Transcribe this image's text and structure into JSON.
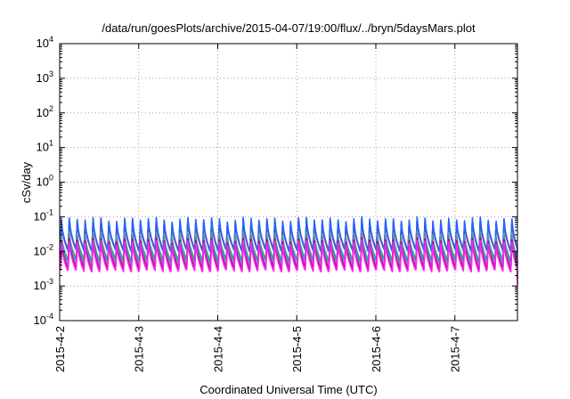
{
  "chart_data": {
    "type": "line",
    "title": "/data/run/goesPlots/archive/2015-04-07/19:00/flux/../bryn/5daysMars.plot",
    "xlabel": "Coordinated Universal Time (UTC)",
    "ylabel": "cSv/day",
    "yscale": "log",
    "ylim": [
      0.0001,
      10000
    ],
    "y_ticks": [
      {
        "base": "10",
        "exp": "-4",
        "value": 0.0001
      },
      {
        "base": "10",
        "exp": "-3",
        "value": 0.001
      },
      {
        "base": "10",
        "exp": "-2",
        "value": 0.01
      },
      {
        "base": "10",
        "exp": "-1",
        "value": 0.1
      },
      {
        "base": "10",
        "exp": "0",
        "value": 1
      },
      {
        "base": "10",
        "exp": "1",
        "value": 10
      },
      {
        "base": "10",
        "exp": "2",
        "value": 100
      },
      {
        "base": "10",
        "exp": "3",
        "value": 1000
      },
      {
        "base": "10",
        "exp": "4",
        "value": 10000
      }
    ],
    "xlim": [
      "2015-04-02 00:00",
      "2015-04-07 19:00"
    ],
    "x_ticks": [
      {
        "label": "2015-4-2",
        "value": "2015-04-02"
      },
      {
        "label": "2015-4-3",
        "value": "2015-04-03"
      },
      {
        "label": "2015-4-4",
        "value": "2015-04-04"
      },
      {
        "label": "2015-4-5",
        "value": "2015-04-05"
      },
      {
        "label": "2015-4-6",
        "value": "2015-04-06"
      },
      {
        "label": "2015-4-7",
        "value": "2015-04-07"
      }
    ],
    "grid": true,
    "series_shape": {
      "pattern": "periodic sawtooth",
      "period_hours": 2.4,
      "end_drop": true
    },
    "series": [
      {
        "color": "#7a1010",
        "peak": 0.075,
        "trough": 0.012,
        "end": 0.012
      },
      {
        "color": "#d83030",
        "peak": 0.07,
        "trough": 0.011,
        "end": 0.011
      },
      {
        "color": "#2266ff",
        "peak": 0.085,
        "trough": 0.0115,
        "end": 0.009
      },
      {
        "color": "#2ab6d6",
        "peak": 0.032,
        "trough": 0.0062,
        "end": 0.005
      },
      {
        "color": "#26a87a",
        "peak": 0.028,
        "trough": 0.0055,
        "end": 0.004
      },
      {
        "color": "#a066d0",
        "peak": 0.025,
        "trough": 0.0042,
        "end": 0.0022
      },
      {
        "color": "#8a1078",
        "peak": 0.021,
        "trough": 0.0033,
        "end": 0.0016
      },
      {
        "color": "#ff22ee",
        "peak": 0.018,
        "trough": 0.0028,
        "end": 0.0011
      }
    ]
  }
}
